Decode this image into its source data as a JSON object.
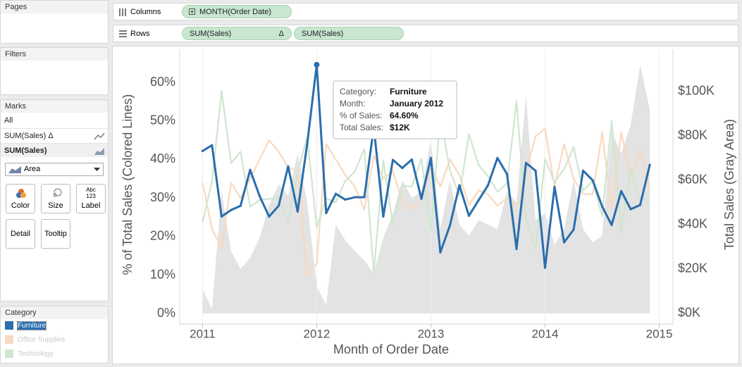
{
  "ui": {
    "pages": "Pages",
    "filters": "Filters",
    "marks": "Marks",
    "marks_all": "All",
    "marks_layer1": "SUM(Sales)",
    "marks_layer1_delta": "Δ",
    "marks_layer2": "SUM(Sales)",
    "mark_type": "Area",
    "buttons": [
      "Color",
      "Size",
      "Label",
      "Detail",
      "Tooltip"
    ],
    "label_icon": [
      "Abc",
      "123"
    ],
    "legend_title": "Category",
    "columns": "Columns",
    "columns_pill": "MONTH(Order Date)",
    "rows": "Rows",
    "rows_pill1": "SUM(Sales)",
    "rows_pill1_delta": "Δ",
    "rows_pill2": "SUM(Sales)"
  },
  "chart_data": {
    "type": "line",
    "x_label": "Month of Order Date",
    "y_label": "% of Total Sales (Colored Lines)",
    "y2_label": "Total Sales (Gray Area)",
    "x": [
      2011,
      2011.083,
      2011.167,
      2011.25,
      2011.333,
      2011.417,
      2011.5,
      2011.583,
      2011.667,
      2011.75,
      2011.833,
      2011.917,
      2012,
      2012.083,
      2012.167,
      2012.25,
      2012.333,
      2012.417,
      2012.5,
      2012.583,
      2012.667,
      2012.75,
      2012.833,
      2012.917,
      2013,
      2013.083,
      2013.167,
      2013.25,
      2013.333,
      2013.417,
      2013.5,
      2013.583,
      2013.667,
      2013.75,
      2013.833,
      2013.917,
      2014,
      2014.083,
      2014.167,
      2014.25,
      2014.333,
      2014.417,
      2014.5,
      2014.583,
      2014.667,
      2014.75,
      2014.833,
      2014.917
    ],
    "xlim": [
      2010.8,
      2015.12
    ],
    "xticks": [
      2011,
      2012,
      2013,
      2014,
      2015
    ],
    "xgrid": true,
    "ylim": [
      -2.7,
      68.6
    ],
    "yticks": [
      {
        "value": 0,
        "label": "0%"
      },
      {
        "value": 10,
        "label": "10%"
      },
      {
        "value": 20,
        "label": "20%"
      },
      {
        "value": 30,
        "label": "30%"
      },
      {
        "value": 40,
        "label": "40%"
      },
      {
        "value": 50,
        "label": "50%"
      },
      {
        "value": 60,
        "label": "60%"
      }
    ],
    "y2lim": [
      -4800,
      119000
    ],
    "y2ticks": [
      {
        "value": 0,
        "label": "$0K"
      },
      {
        "value": 20000,
        "label": "$20K"
      },
      {
        "value": 40000,
        "label": "$40K"
      },
      {
        "value": 60000,
        "label": "$60K"
      },
      {
        "value": 80000,
        "label": "$80K"
      },
      {
        "value": 100000,
        "label": "$100K"
      }
    ],
    "area": {
      "color": "#e3e3e3",
      "axis": "y2",
      "values": [
        11000,
        2000,
        55000,
        28000,
        20000,
        25000,
        34000,
        49000,
        58000,
        53000,
        72000,
        50000,
        12000,
        4000,
        40000,
        33000,
        28000,
        24000,
        18000,
        34000,
        45000,
        60000,
        52000,
        55000,
        78000,
        38000,
        60000,
        40000,
        35000,
        42000,
        40000,
        38000,
        55000,
        50000,
        98000,
        42000,
        45000,
        31000,
        38000,
        60000,
        38000,
        32000,
        35000,
        82000,
        72000,
        85000,
        112000,
        92000
      ]
    },
    "series": [
      {
        "name": "Office Supplies",
        "color": "#f8d9bf",
        "values": [
          34,
          22,
          17,
          34,
          30,
          35,
          40,
          45,
          42,
          38,
          37,
          10,
          13,
          44,
          40,
          36,
          33,
          27,
          41,
          35,
          37,
          29,
          27,
          30,
          38,
          33,
          40,
          36,
          28,
          32,
          31,
          28,
          30,
          28,
          37,
          46,
          48,
          33,
          44,
          35,
          31,
          31,
          47,
          27,
          47,
          35,
          42,
          32
        ]
      },
      {
        "name": "Technology",
        "color": "#cfe6cf",
        "values": [
          23.8,
          34.3,
          57.8,
          39.1,
          42,
          27.7,
          29.5,
          29.8,
          30,
          23.8,
          36.5,
          45.9,
          22.4,
          29.9,
          28.9,
          34.4,
          36.8,
          42.8,
          10.6,
          39.8,
          23.1,
          33.2,
          33,
          40.2,
          21.6,
          51.1,
          37.1,
          30.7,
          46.6,
          38.6,
          35.7,
          31.6,
          33.8,
          55.2,
          23.9,
          16.9,
          40.1,
          34.1,
          37.5,
          43.2,
          31.9,
          34.4,
          25.2,
          50,
          21.2,
          37.9,
          29.8,
          29.4
        ]
      },
      {
        "name": "Furniture",
        "color": "#2a6ead",
        "values": [
          42.2,
          43.7,
          25.2,
          26.9,
          28,
          37.3,
          30.5,
          25.2,
          28,
          38.2,
          26.5,
          44.1,
          64.6,
          26.1,
          31.1,
          29.6,
          30.2,
          30.2,
          48.4,
          25.2,
          39.9,
          37.8,
          40,
          29.8,
          40.4,
          15.9,
          22.9,
          33.3,
          25.4,
          29.4,
          33.3,
          40.4,
          36.2,
          16.8,
          39.1,
          37.1,
          11.9,
          32.9,
          18.5,
          21.8,
          37.1,
          34.6,
          27.8,
          23,
          31.8,
          27.1,
          28.2,
          38.6
        ]
      }
    ],
    "legend_order": [
      2,
      0,
      1
    ],
    "tooltip": {
      "rows": [
        [
          "Category:",
          "Furniture"
        ],
        [
          "Month:",
          "January 2012"
        ],
        [
          "% of Sales:",
          "64.60%"
        ],
        [
          "Total Sales:",
          "$12K"
        ]
      ]
    }
  }
}
